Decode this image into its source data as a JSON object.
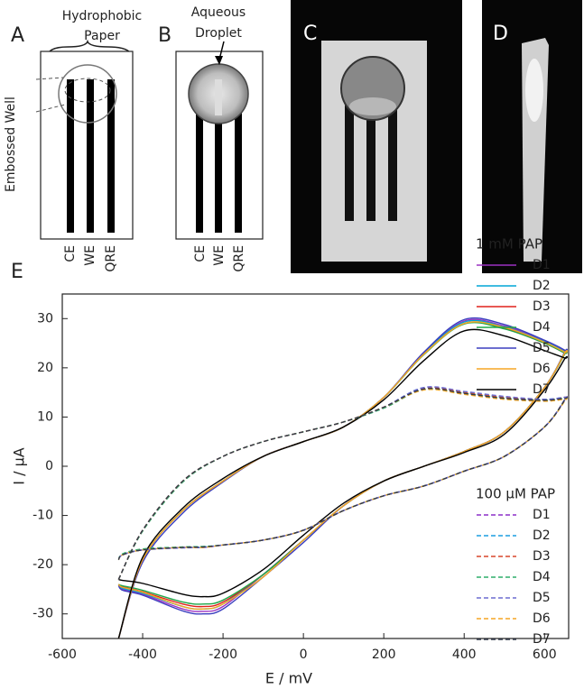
{
  "panel_labels": [
    "A",
    "B",
    "C",
    "D",
    "E"
  ],
  "annotations": {
    "hydrophobic": "Hydrophobic",
    "paper": "Paper",
    "aqueous": "Aqueous",
    "droplet": "Droplet",
    "embossed_well": "Embossed Well"
  },
  "electrode_labels": [
    "CE",
    "WE",
    "QRE"
  ],
  "chart_data": {
    "type": "line",
    "x_label": "E / mV",
    "y_label": "I / μA",
    "xlim": [
      -600,
      660
    ],
    "ylim": [
      -35,
      35
    ],
    "xticks": [
      -600,
      -400,
      -200,
      0,
      200,
      400,
      600
    ],
    "yticks": [
      -30,
      -20,
      -10,
      0,
      10,
      20,
      30
    ],
    "x": [
      -460,
      -400,
      -300,
      -200,
      -100,
      0,
      100,
      200,
      300,
      400,
      500,
      600,
      650,
      650,
      600,
      500,
      400,
      300,
      200,
      100,
      0,
      -100,
      -200,
      -250,
      -300,
      -400,
      -450,
      -460
    ],
    "groups": [
      {
        "title": "1 mM PAP",
        "style": "solid",
        "series": [
          {
            "name": "D1",
            "color": "#9b30c0",
            "values": [
              -35,
              -19,
              -9,
              -3,
              2,
              5,
              8,
              14,
              23,
              29.5,
              28.5,
              25.5,
              23.5,
              23,
              16,
              7,
              3,
              0,
              -3,
              -8,
              -15,
              -22,
              -28.5,
              -29.5,
              -29,
              -26,
              -25,
              -24
            ]
          },
          {
            "name": "D2",
            "color": "#00a6d6",
            "values": [
              -35,
              -19,
              -9,
              -3,
              2,
              5,
              8,
              14,
              23,
              29.3,
              28.3,
              25.3,
              23.3,
              23,
              16,
              7,
              3,
              0,
              -3,
              -8,
              -15,
              -22,
              -28,
              -29,
              -28.5,
              -25.8,
              -24.8,
              -24
            ]
          },
          {
            "name": "D3",
            "color": "#e0201b",
            "values": [
              -35,
              -19,
              -9,
              -3,
              2,
              5,
              8,
              14,
              22.8,
              29,
              28,
              25,
              23,
              22.8,
              16,
              7,
              3,
              0,
              -3,
              -8,
              -15,
              -22,
              -27.6,
              -28.5,
              -28,
              -25.5,
              -24.5,
              -24
            ]
          },
          {
            "name": "D4",
            "color": "#1fa84a",
            "values": [
              -35,
              -19,
              -9,
              -3,
              2,
              5,
              8,
              14,
              22.7,
              28.9,
              27.9,
              25,
              23,
              22.8,
              16,
              7,
              3,
              0,
              -3,
              -8,
              -15,
              -22,
              -27.2,
              -28,
              -27.6,
              -25.2,
              -24.3,
              -24
            ]
          },
          {
            "name": "D5",
            "color": "#3b3fbf",
            "values": [
              -35,
              -19.5,
              -9.5,
              -3.2,
              2,
              5,
              8,
              14,
              23.2,
              29.8,
              28.8,
              25.6,
              23.6,
              23.2,
              16,
              7,
              3,
              0,
              -3,
              -8,
              -15.5,
              -22.5,
              -29,
              -30,
              -29.4,
              -26.2,
              -25.2,
              -24.2
            ]
          },
          {
            "name": "D6",
            "color": "#f5a623",
            "values": [
              -35,
              -19,
              -9,
              -3,
              2,
              5,
              8,
              14,
              22.8,
              29,
              28.2,
              25.2,
              23.2,
              23,
              16,
              7,
              3,
              0,
              -3,
              -8,
              -15,
              -22.5,
              -28,
              -29,
              -28.5,
              -25.6,
              -24.6,
              -24
            ]
          },
          {
            "name": "D7",
            "color": "#000000",
            "values": [
              -35,
              -18.5,
              -8.5,
              -2.5,
              2,
              5,
              8,
              13.5,
              21.5,
              27.5,
              26.5,
              23.5,
              22,
              21.8,
              15.5,
              6.5,
              2.8,
              0,
              -3,
              -7.5,
              -14,
              -21,
              -25.8,
              -26.5,
              -26,
              -23.8,
              -23.2,
              -23
            ]
          }
        ]
      },
      {
        "title": "100 μM PAP",
        "style": "dashed",
        "series": [
          {
            "name": "D1",
            "color": "#8b2fc9",
            "values": [
              -23,
              -13,
              -3,
              2,
              5,
              7,
              9,
              12,
              16,
              15,
              14,
              13.5,
              14,
              13.5,
              8,
              2,
              -1,
              -4,
              -6,
              -9,
              -13,
              -15,
              -16,
              -16.5,
              -16.5,
              -17,
              -18,
              -19
            ]
          },
          {
            "name": "D2",
            "color": "#1c9ee0",
            "values": [
              -23,
              -13,
              -3,
              2,
              5,
              7,
              9,
              12,
              16,
              15,
              14,
              13.6,
              14,
              13.5,
              8,
              2,
              -1,
              -4,
              -6,
              -9,
              -13,
              -15,
              -16,
              -16.4,
              -16.5,
              -17,
              -18,
              -19
            ]
          },
          {
            "name": "D3",
            "color": "#d9472b",
            "values": [
              -23,
              -13,
              -3,
              2,
              5,
              7,
              9,
              12,
              15.8,
              15,
              14,
              13.5,
              14,
              13.5,
              8,
              2,
              -1,
              -4,
              -6,
              -9,
              -13,
              -15,
              -16,
              -16.5,
              -16.5,
              -17,
              -18,
              -19
            ]
          },
          {
            "name": "D4",
            "color": "#2fae6a",
            "values": [
              -23,
              -13.2,
              -3.2,
              2,
              5,
              7,
              9,
              11.8,
              15.6,
              14.8,
              13.8,
              13.4,
              13.8,
              13.4,
              8,
              2,
              -1,
              -4,
              -6,
              -9,
              -13,
              -15,
              -16,
              -16.3,
              -16.4,
              -16.8,
              -17.8,
              -19
            ]
          },
          {
            "name": "D5",
            "color": "#6b6bd0",
            "values": [
              -23,
              -13,
              -3,
              2,
              5,
              7,
              9,
              12,
              16,
              15.2,
              14.2,
              13.6,
              14,
              13.5,
              8,
              2,
              -1,
              -4,
              -6,
              -9,
              -13,
              -15,
              -16,
              -16.5,
              -16.6,
              -17,
              -18,
              -19
            ]
          },
          {
            "name": "D6",
            "color": "#f5a623",
            "values": [
              -23,
              -13,
              -3,
              2,
              5,
              7,
              9,
              12,
              15.5,
              14.6,
              13.6,
              13.2,
              13.6,
              13.2,
              8,
              2,
              -1,
              -4,
              -6,
              -9,
              -13,
              -15,
              -16,
              -16.5,
              -16.5,
              -17,
              -18,
              -19
            ]
          },
          {
            "name": "D7",
            "color": "#333a4a",
            "values": [
              -23,
              -13,
              -3,
              2,
              5,
              7,
              9,
              12,
              15.7,
              14.8,
              13.8,
              13.4,
              13.8,
              13.4,
              8,
              2,
              -1,
              -4,
              -6,
              -9,
              -13,
              -15,
              -16,
              -16.4,
              -16.5,
              -17,
              -18,
              -19
            ]
          }
        ]
      }
    ]
  }
}
